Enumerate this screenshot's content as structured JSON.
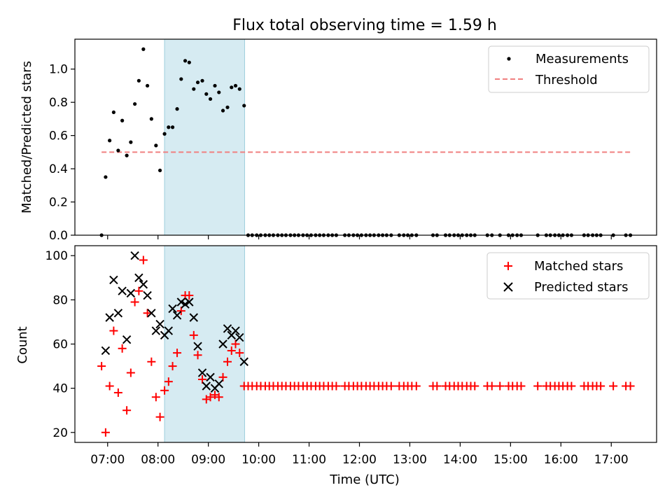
{
  "figure": {
    "title": "Flux total observing time = 1.59 h",
    "xlabel": "Time (UTC)",
    "xticks": [
      {
        "hour": 7,
        "label": "07:00"
      },
      {
        "hour": 8,
        "label": "08:00"
      },
      {
        "hour": 9,
        "label": "09:00"
      },
      {
        "hour": 10,
        "label": "10:00"
      },
      {
        "hour": 11,
        "label": "11:00"
      },
      {
        "hour": 12,
        "label": "12:00"
      },
      {
        "hour": 13,
        "label": "13:00"
      },
      {
        "hour": 14,
        "label": "14:00"
      },
      {
        "hour": 15,
        "label": "15:00"
      },
      {
        "hour": 16,
        "label": "16:00"
      },
      {
        "hour": 17,
        "label": "17:00"
      }
    ],
    "xlim": [
      6.35,
      17.9
    ],
    "shaded_interval": {
      "start": 8.13,
      "end": 9.72,
      "color": "#add8e6"
    }
  },
  "chart_data": [
    {
      "type": "scatter",
      "panel": "top",
      "title": "Flux total observing time = 1.59 h",
      "xlabel": "",
      "ylabel": "Matched/Predicted stars",
      "ylim": [
        0,
        1.18
      ],
      "yticks": [
        {
          "value": 0.0,
          "label": "0.0"
        },
        {
          "value": 0.2,
          "label": "0.2"
        },
        {
          "value": 0.4,
          "label": "0.4"
        },
        {
          "value": 0.6,
          "label": "0.6"
        },
        {
          "value": 0.8,
          "label": "0.8"
        },
        {
          "value": 1.0,
          "label": "1.0"
        }
      ],
      "legend": {
        "placement": "top-right",
        "entries": [
          "Measurements",
          "Threshold"
        ]
      },
      "series": [
        {
          "name": "Measurements",
          "marker": "dot",
          "color": "#000000",
          "x": [
            6.88,
            6.96,
            7.04,
            7.12,
            7.21,
            7.29,
            7.38,
            7.46,
            7.54,
            7.62,
            7.71,
            7.79,
            7.87,
            7.96,
            8.04,
            8.13,
            8.21,
            8.29,
            8.38,
            8.46,
            8.54,
            8.62,
            8.71,
            8.79,
            8.88,
            8.96,
            9.04,
            9.13,
            9.21,
            9.29,
            9.38,
            9.46,
            9.54,
            9.62,
            9.71,
            9.79,
            9.87,
            9.96,
            10.04,
            10.13,
            10.21,
            10.29,
            10.38,
            10.46,
            10.54,
            10.63,
            10.71,
            10.79,
            10.88,
            10.96,
            11.04,
            11.13,
            11.21,
            11.29,
            11.38,
            11.46,
            11.54,
            11.71,
            11.79,
            11.88,
            11.96,
            12.04,
            12.13,
            12.21,
            12.29,
            12.38,
            12.46,
            12.54,
            12.63,
            12.79,
            12.88,
            12.96,
            13.04,
            13.13,
            13.46,
            13.54,
            13.71,
            13.79,
            13.88,
            13.96,
            14.04,
            14.13,
            14.21,
            14.29,
            14.54,
            14.63,
            14.79,
            14.96,
            15.04,
            15.13,
            15.21,
            15.54,
            15.71,
            15.79,
            15.88,
            15.96,
            16.04,
            16.13,
            16.21,
            16.46,
            16.54,
            16.63,
            16.71,
            16.79,
            17.04,
            17.29,
            17.38
          ],
          "y": [
            0.0,
            0.35,
            0.57,
            0.74,
            0.51,
            0.69,
            0.48,
            0.56,
            0.79,
            0.93,
            1.12,
            0.9,
            0.7,
            0.54,
            0.39,
            0.61,
            0.65,
            0.65,
            0.76,
            0.94,
            1.05,
            1.04,
            0.88,
            0.92,
            0.93,
            0.85,
            0.82,
            0.9,
            0.86,
            0.75,
            0.77,
            0.89,
            0.9,
            0.88,
            0.78,
            0.0,
            0.0,
            0.0,
            0.0,
            0.0,
            0.0,
            0.0,
            0.0,
            0.0,
            0.0,
            0.0,
            0.0,
            0.0,
            0.0,
            0.0,
            0.0,
            0.0,
            0.0,
            0.0,
            0.0,
            0.0,
            0.0,
            0.0,
            0.0,
            0.0,
            0.0,
            0.0,
            0.0,
            0.0,
            0.0,
            0.0,
            0.0,
            0.0,
            0.0,
            0.0,
            0.0,
            0.0,
            0.0,
            0.0,
            0.0,
            0.0,
            0.0,
            0.0,
            0.0,
            0.0,
            0.0,
            0.0,
            0.0,
            0.0,
            0.0,
            0.0,
            0.0,
            0.0,
            0.0,
            0.0,
            0.0,
            0.0,
            0.0,
            0.0,
            0.0,
            0.0,
            0.0,
            0.0,
            0.0,
            0.0,
            0.0,
            0.0,
            0.0,
            0.0,
            0.0,
            0.0,
            0.0
          ]
        },
        {
          "name": "Threshold",
          "marker": "dashed-line",
          "color": "#f08080",
          "x": [
            6.88,
            17.38
          ],
          "y": [
            0.5,
            0.5
          ]
        }
      ]
    },
    {
      "type": "scatter",
      "panel": "bottom",
      "xlabel": "Time (UTC)",
      "ylabel": "Count",
      "ylim": [
        15.5,
        104.5
      ],
      "yticks": [
        {
          "value": 20,
          "label": "20"
        },
        {
          "value": 40,
          "label": "40"
        },
        {
          "value": 60,
          "label": "60"
        },
        {
          "value": 80,
          "label": "80"
        },
        {
          "value": 100,
          "label": "100"
        }
      ],
      "legend": {
        "placement": "top-right",
        "entries": [
          "Matched stars",
          "Predicted stars"
        ]
      },
      "series": [
        {
          "name": "Matched stars",
          "marker": "plus",
          "color": "#ff0000",
          "x": [
            6.88,
            6.96,
            7.04,
            7.12,
            7.21,
            7.29,
            7.38,
            7.46,
            7.54,
            7.62,
            7.71,
            7.79,
            7.87,
            7.96,
            8.04,
            8.13,
            8.21,
            8.29,
            8.38,
            8.46,
            8.54,
            8.62,
            8.71,
            8.79,
            8.88,
            8.96,
            9.04,
            9.13,
            9.21,
            9.29,
            9.38,
            9.46,
            9.54,
            9.62,
            9.71,
            9.79,
            9.87,
            9.96,
            10.04,
            10.13,
            10.21,
            10.29,
            10.38,
            10.46,
            10.54,
            10.63,
            10.71,
            10.79,
            10.88,
            10.96,
            11.04,
            11.13,
            11.21,
            11.29,
            11.38,
            11.46,
            11.54,
            11.71,
            11.79,
            11.88,
            11.96,
            12.04,
            12.13,
            12.21,
            12.29,
            12.38,
            12.46,
            12.54,
            12.63,
            12.79,
            12.88,
            12.96,
            13.04,
            13.13,
            13.46,
            13.54,
            13.71,
            13.79,
            13.88,
            13.96,
            14.04,
            14.13,
            14.21,
            14.29,
            14.54,
            14.63,
            14.79,
            14.96,
            15.04,
            15.13,
            15.21,
            15.54,
            15.71,
            15.79,
            15.88,
            15.96,
            16.04,
            16.13,
            16.21,
            16.46,
            16.54,
            16.63,
            16.71,
            16.79,
            17.04,
            17.29,
            17.38
          ],
          "y": [
            50,
            20,
            41,
            66,
            38,
            58,
            30,
            47,
            79,
            84,
            98,
            74,
            52,
            36,
            27,
            39,
            43,
            50,
            56,
            75,
            82,
            82,
            64,
            55,
            44,
            35,
            36,
            37,
            36,
            45,
            52,
            57,
            60,
            56,
            41,
            41,
            41,
            41,
            41,
            41,
            41,
            41,
            41,
            41,
            41,
            41,
            41,
            41,
            41,
            41,
            41,
            41,
            41,
            41,
            41,
            41,
            41,
            41,
            41,
            41,
            41,
            41,
            41,
            41,
            41,
            41,
            41,
            41,
            41,
            41,
            41,
            41,
            41,
            41,
            41,
            41,
            41,
            41,
            41,
            41,
            41,
            41,
            41,
            41,
            41,
            41,
            41,
            41,
            41,
            41,
            41,
            41,
            41,
            41,
            41,
            41,
            41,
            41,
            41,
            41,
            41,
            41,
            41,
            41,
            41,
            41,
            41
          ]
        },
        {
          "name": "Predicted stars",
          "marker": "x",
          "color": "#000000",
          "x": [
            6.96,
            7.04,
            7.12,
            7.21,
            7.29,
            7.38,
            7.46,
            7.54,
            7.62,
            7.71,
            7.79,
            7.87,
            7.96,
            8.04,
            8.13,
            8.21,
            8.29,
            8.38,
            8.46,
            8.54,
            8.62,
            8.71,
            8.79,
            8.88,
            8.96,
            9.04,
            9.13,
            9.21,
            9.29,
            9.38,
            9.46,
            9.54,
            9.62,
            9.71
          ],
          "y": [
            57,
            72,
            89,
            74,
            84,
            62,
            83,
            100,
            90,
            87,
            82,
            74,
            66,
            69,
            64,
            66,
            76,
            73,
            79,
            78,
            79,
            72,
            59,
            47,
            41,
            45,
            40,
            42,
            60,
            67,
            64,
            66,
            63,
            52
          ]
        }
      ]
    }
  ]
}
